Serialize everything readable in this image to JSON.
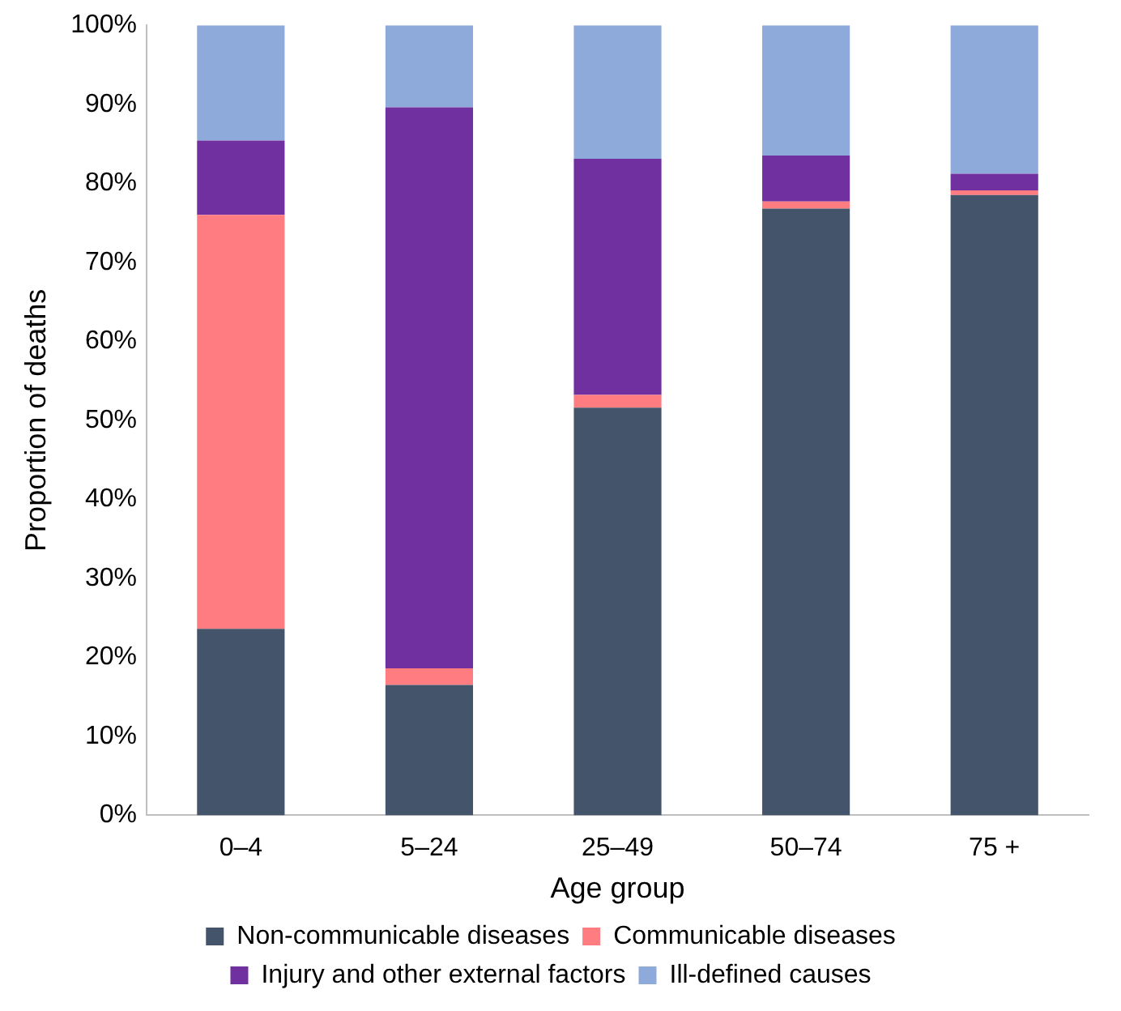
{
  "chart_data": {
    "type": "bar",
    "stacked": true,
    "xlabel": "Age group",
    "ylabel": "Proportion of deaths",
    "categories": [
      "0–4",
      "5–24",
      "25–49",
      "50–74",
      "75 +"
    ],
    "series": [
      {
        "name": "Non-communicable diseases",
        "color": "#44546a",
        "values": [
          23.6,
          16.5,
          51.6,
          76.8,
          78.5
        ]
      },
      {
        "name": "Communicable diseases",
        "color": "#ff7c80",
        "values": [
          52.4,
          2.1,
          1.6,
          0.9,
          0.6
        ]
      },
      {
        "name": "Injury and other external factors",
        "color": "#7030a0",
        "values": [
          9.4,
          71.0,
          29.9,
          5.8,
          2.1
        ]
      },
      {
        "name": "Ill-defined causes",
        "color": "#8eaadb",
        "values": [
          14.6,
          10.4,
          16.9,
          16.5,
          18.8
        ]
      }
    ],
    "ylim": [
      0,
      100
    ],
    "yticks": [
      {
        "value": 0,
        "label": "0%"
      },
      {
        "value": 10,
        "label": "10%"
      },
      {
        "value": 20,
        "label": "20%"
      },
      {
        "value": 30,
        "label": "30%"
      },
      {
        "value": 40,
        "label": "40%"
      },
      {
        "value": 50,
        "label": "50%"
      },
      {
        "value": 60,
        "label": "60%"
      },
      {
        "value": 70,
        "label": "70%"
      },
      {
        "value": 80,
        "label": "80%"
      },
      {
        "value": 90,
        "label": "90%"
      },
      {
        "value": 100,
        "label": "100%"
      }
    ],
    "grid": false,
    "legend": "bottom"
  }
}
